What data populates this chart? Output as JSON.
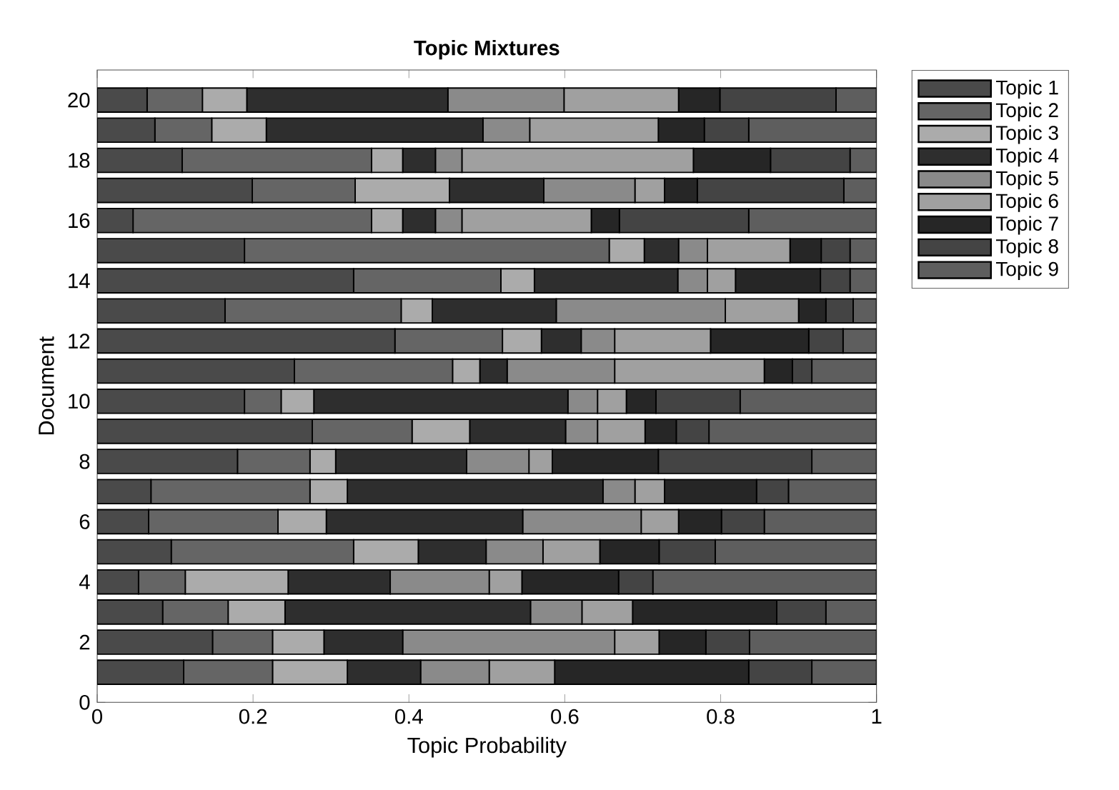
{
  "chart_data": {
    "type": "bar",
    "orientation": "horizontal",
    "stacked": true,
    "title": "Topic Mixtures",
    "xlabel": "Topic Probability",
    "ylabel": "Document",
    "x": [
      1,
      2,
      3,
      4,
      5,
      6,
      7,
      8,
      9,
      10,
      11,
      12,
      13,
      14,
      15,
      16,
      17,
      18,
      19,
      20
    ],
    "xlim": [
      0,
      1
    ],
    "xticks": [
      0,
      0.2,
      0.4,
      0.6,
      0.8,
      1
    ],
    "ylim": [
      0,
      21
    ],
    "yticks": [
      0,
      2,
      4,
      6,
      8,
      10,
      12,
      14,
      16,
      18,
      20
    ],
    "legend": "top right",
    "series": [
      {
        "name": "Topic 1",
        "color": "#4a4a4a",
        "values": [
          0.111,
          0.148,
          0.084,
          0.053,
          0.095,
          0.066,
          0.069,
          0.18,
          0.276,
          0.189,
          0.253,
          0.382,
          0.164,
          0.329,
          0.189,
          0.046,
          0.199,
          0.109,
          0.074,
          0.064
        ]
      },
      {
        "name": "Topic 2",
        "color": "#656565",
        "values": [
          0.114,
          0.077,
          0.084,
          0.06,
          0.234,
          0.166,
          0.204,
          0.093,
          0.128,
          0.047,
          0.203,
          0.138,
          0.226,
          0.189,
          0.468,
          0.306,
          0.132,
          0.243,
          0.073,
          0.071
        ]
      },
      {
        "name": "Topic 3",
        "color": "#ababab",
        "values": [
          0.096,
          0.066,
          0.073,
          0.132,
          0.083,
          0.062,
          0.048,
          0.033,
          0.074,
          0.042,
          0.035,
          0.05,
          0.04,
          0.043,
          0.045,
          0.04,
          0.121,
          0.04,
          0.07,
          0.057
        ]
      },
      {
        "name": "Topic 4",
        "color": "#2e2e2e",
        "values": [
          0.094,
          0.101,
          0.315,
          0.131,
          0.087,
          0.252,
          0.328,
          0.168,
          0.123,
          0.326,
          0.035,
          0.051,
          0.159,
          0.184,
          0.044,
          0.042,
          0.121,
          0.042,
          0.278,
          0.258
        ]
      },
      {
        "name": "Topic 5",
        "color": "#8a8a8a",
        "values": [
          0.088,
          0.272,
          0.066,
          0.127,
          0.073,
          0.152,
          0.041,
          0.08,
          0.041,
          0.038,
          0.138,
          0.043,
          0.217,
          0.038,
          0.037,
          0.034,
          0.117,
          0.034,
          0.06,
          0.149
        ]
      },
      {
        "name": "Topic 6",
        "color": "#a0a0a0",
        "values": [
          0.084,
          0.057,
          0.065,
          0.042,
          0.073,
          0.048,
          0.038,
          0.03,
          0.061,
          0.037,
          0.192,
          0.123,
          0.094,
          0.036,
          0.106,
          0.166,
          0.038,
          0.297,
          0.165,
          0.147
        ]
      },
      {
        "name": "Topic 7",
        "color": "#262626",
        "values": [
          0.249,
          0.06,
          0.185,
          0.124,
          0.076,
          0.055,
          0.118,
          0.136,
          0.04,
          0.038,
          0.036,
          0.126,
          0.035,
          0.109,
          0.04,
          0.036,
          0.042,
          0.099,
          0.059,
          0.053
        ]
      },
      {
        "name": "Topic 8",
        "color": "#444444",
        "values": [
          0.081,
          0.056,
          0.063,
          0.044,
          0.072,
          0.055,
          0.041,
          0.197,
          0.042,
          0.108,
          0.025,
          0.044,
          0.035,
          0.038,
          0.037,
          0.166,
          0.188,
          0.102,
          0.057,
          0.149
        ]
      },
      {
        "name": "Topic 9",
        "color": "#5e5e5e",
        "values": [
          0.083,
          0.163,
          0.065,
          0.287,
          0.207,
          0.144,
          0.113,
          0.083,
          0.215,
          0.175,
          0.083,
          0.043,
          0.03,
          0.034,
          0.034,
          0.164,
          0.042,
          0.034,
          0.164,
          0.052
        ]
      }
    ]
  }
}
